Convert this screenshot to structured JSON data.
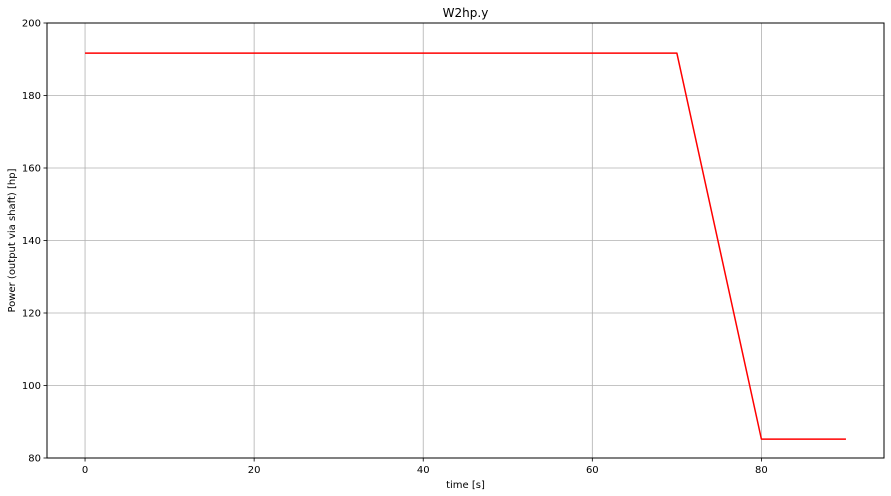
{
  "chart_data": {
    "type": "line",
    "title": "W2hp.y",
    "xlabel": "time [s]",
    "ylabel": "Power (output via shaft) [hp]",
    "xlim": [
      -4.5,
      94.5
    ],
    "ylim": [
      80,
      200
    ],
    "xticks": [
      0,
      20,
      40,
      60,
      80
    ],
    "yticks": [
      80,
      100,
      120,
      140,
      160,
      180,
      200
    ],
    "grid": true,
    "series": [
      {
        "color": "#ff0000",
        "x": [
          0,
          70,
          80,
          90
        ],
        "y": [
          191.7,
          191.7,
          85.2,
          85.2
        ]
      }
    ]
  }
}
